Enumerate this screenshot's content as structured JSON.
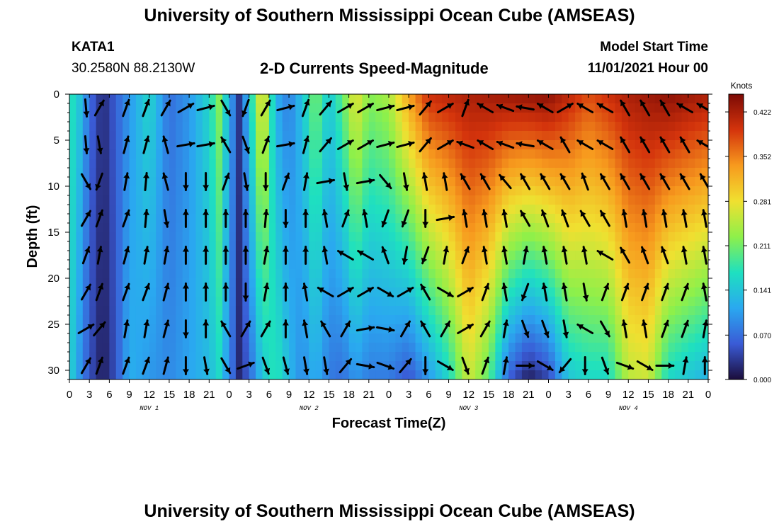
{
  "header": {
    "title": "University of Southern Mississippi Ocean Cube (AMSEAS)",
    "station": "KATA1",
    "coords": "30.2580N  88.2130W",
    "subtitle": "2-D Currents Speed-Magnitude",
    "model_start_label": "Model Start Time",
    "model_start_value": "11/01/2021 Hour 00"
  },
  "footer": {
    "title": "University of Southern Mississippi Ocean Cube (AMSEAS)"
  },
  "chart_data": {
    "type": "heatmap",
    "title": "2-D Currents Speed-Magnitude",
    "xlabel": "Forecast Time(Z)",
    "ylabel": "Depth (ft)",
    "x_hours": [
      0,
      96
    ],
    "ylim": [
      0,
      31
    ],
    "x_tick_labels": [
      "0",
      "3",
      "6",
      "9",
      "12",
      "15",
      "18",
      "21",
      "0",
      "3",
      "6",
      "9",
      "12",
      "15",
      "18",
      "21",
      "0",
      "3",
      "6",
      "9",
      "12",
      "15",
      "18",
      "21",
      "0",
      "3",
      "6",
      "9",
      "12",
      "15",
      "18",
      "21",
      "0"
    ],
    "day_labels": [
      {
        "label": "NOV 1",
        "hour": 12
      },
      {
        "label": "NOV 2",
        "hour": 36
      },
      {
        "label": "NOV 3",
        "hour": 60
      },
      {
        "label": "NOV 4",
        "hour": 84
      }
    ],
    "y_ticks": [
      0,
      5,
      10,
      15,
      20,
      25,
      30
    ],
    "colorbar": {
      "unit": "Knots",
      "min": 0.0,
      "max": 0.45,
      "ticks": [
        "0.000",
        "0.070",
        "0.141",
        "0.211",
        "0.281",
        "0.352",
        "0.422"
      ],
      "tick_values": [
        0.0,
        0.07,
        0.141,
        0.211,
        0.281,
        0.352,
        0.422
      ],
      "colors": [
        "#1b0d3b",
        "#3a5bd6",
        "#2aa8f0",
        "#1ee0c0",
        "#8ef04a",
        "#f0e030",
        "#f79a1e",
        "#d4340c",
        "#7c0a05"
      ]
    },
    "speed_profile_surface": [
      {
        "hour": 0,
        "speed": 0.18
      },
      {
        "hour": 1.5,
        "speed": 0.14
      },
      {
        "hour": 3,
        "speed": 0.07
      },
      {
        "hour": 5,
        "speed": 0.02
      },
      {
        "hour": 7,
        "speed": 0.06
      },
      {
        "hour": 9,
        "speed": 0.1
      },
      {
        "hour": 12,
        "speed": 0.16
      },
      {
        "hour": 15,
        "speed": 0.07
      },
      {
        "hour": 18,
        "speed": 0.1
      },
      {
        "hour": 21,
        "speed": 0.16
      },
      {
        "hour": 22.5,
        "speed": 0.22
      },
      {
        "hour": 24,
        "speed": 0.12
      },
      {
        "hour": 25.5,
        "speed": 0.03
      },
      {
        "hour": 27,
        "speed": 0.14
      },
      {
        "hour": 29,
        "speed": 0.3
      },
      {
        "hour": 31,
        "speed": 0.12
      },
      {
        "hour": 33,
        "speed": 0.08
      },
      {
        "hour": 35,
        "speed": 0.14
      },
      {
        "hour": 37,
        "speed": 0.22
      },
      {
        "hour": 39,
        "speed": 0.14
      },
      {
        "hour": 41,
        "speed": 0.2
      },
      {
        "hour": 43,
        "speed": 0.28
      },
      {
        "hour": 45,
        "speed": 0.22
      },
      {
        "hour": 48,
        "speed": 0.24
      },
      {
        "hour": 51,
        "speed": 0.33
      },
      {
        "hour": 54,
        "speed": 0.4
      },
      {
        "hour": 60,
        "speed": 0.42
      },
      {
        "hour": 66,
        "speed": 0.43
      },
      {
        "hour": 72,
        "speed": 0.44
      },
      {
        "hour": 78,
        "speed": 0.38
      },
      {
        "hour": 84,
        "speed": 0.42
      },
      {
        "hour": 90,
        "speed": 0.44
      },
      {
        "hour": 96,
        "speed": 0.42
      }
    ],
    "speed_profile_bottom": [
      {
        "hour": 0,
        "speed": 0.16
      },
      {
        "hour": 1.5,
        "speed": 0.1
      },
      {
        "hour": 3,
        "speed": 0.05
      },
      {
        "hour": 5,
        "speed": 0.01
      },
      {
        "hour": 7,
        "speed": 0.05
      },
      {
        "hour": 9,
        "speed": 0.12
      },
      {
        "hour": 12,
        "speed": 0.1
      },
      {
        "hour": 15,
        "speed": 0.09
      },
      {
        "hour": 18,
        "speed": 0.11
      },
      {
        "hour": 21,
        "speed": 0.13
      },
      {
        "hour": 22.5,
        "speed": 0.16
      },
      {
        "hour": 24,
        "speed": 0.09
      },
      {
        "hour": 25.5,
        "speed": 0.02
      },
      {
        "hour": 27,
        "speed": 0.06
      },
      {
        "hour": 29,
        "speed": 0.14
      },
      {
        "hour": 31,
        "speed": 0.18
      },
      {
        "hour": 33,
        "speed": 0.13
      },
      {
        "hour": 35,
        "speed": 0.09
      },
      {
        "hour": 37,
        "speed": 0.12
      },
      {
        "hour": 39,
        "speed": 0.08
      },
      {
        "hour": 41,
        "speed": 0.07
      },
      {
        "hour": 43,
        "speed": 0.1
      },
      {
        "hour": 45,
        "speed": 0.08
      },
      {
        "hour": 48,
        "speed": 0.08
      },
      {
        "hour": 51,
        "speed": 0.05
      },
      {
        "hour": 54,
        "speed": 0.1
      },
      {
        "hour": 57,
        "speed": 0.16
      },
      {
        "hour": 60,
        "speed": 0.26
      },
      {
        "hour": 63,
        "speed": 0.2
      },
      {
        "hour": 66,
        "speed": 0.06
      },
      {
        "hour": 69,
        "speed": 0.01
      },
      {
        "hour": 72,
        "speed": 0.04
      },
      {
        "hour": 75,
        "speed": 0.14
      },
      {
        "hour": 78,
        "speed": 0.16
      },
      {
        "hour": 81,
        "speed": 0.16
      },
      {
        "hour": 84,
        "speed": 0.25
      },
      {
        "hour": 87,
        "speed": 0.26
      },
      {
        "hour": 90,
        "speed": 0.16
      },
      {
        "hour": 93,
        "speed": 0.14
      },
      {
        "hour": 96,
        "speed": 0.12
      }
    ],
    "arrow_depths_ft": [
      1.5,
      5.5,
      9.5,
      13.5,
      17.5,
      21.5,
      25.5,
      29.5
    ],
    "arrow_hours": [
      2.5,
      4.5,
      8.5,
      11.5,
      14.5,
      17.5,
      20.5,
      23.5,
      26.5,
      29.5,
      32.5,
      35.5,
      38.5,
      41.5,
      44.5,
      47.5,
      50.5,
      53.5,
      56.5,
      59.5,
      62.5,
      65.5,
      68.5,
      71.5,
      74.5,
      77.5,
      80.5,
      83.5,
      86.5,
      89.5,
      92.5,
      95.5
    ],
    "arrow_directions_deg": [
      [
        175,
        30,
        20,
        20,
        30,
        60,
        75,
        150,
        200,
        30,
        75,
        20,
        40,
        60,
        60,
        75,
        75,
        40,
        60,
        20,
        300,
        290,
        280,
        300,
        60,
        300,
        300,
        330,
        330,
        330,
        300,
        300
      ],
      [
        175,
        170,
        15,
        15,
        345,
        80,
        80,
        330,
        160,
        20,
        80,
        15,
        40,
        60,
        60,
        75,
        75,
        40,
        60,
        290,
        300,
        290,
        280,
        300,
        330,
        300,
        300,
        330,
        330,
        330,
        330,
        300
      ],
      [
        150,
        200,
        10,
        5,
        345,
        180,
        180,
        20,
        170,
        180,
        20,
        10,
        80,
        170,
        80,
        140,
        170,
        350,
        350,
        330,
        330,
        320,
        330,
        330,
        330,
        340,
        330,
        330,
        330,
        330,
        330,
        330
      ],
      [
        30,
        20,
        20,
        5,
        170,
        0,
        0,
        0,
        0,
        5,
        180,
        0,
        350,
        20,
        350,
        200,
        200,
        180,
        80,
        350,
        350,
        350,
        330,
        340,
        340,
        330,
        330,
        350,
        350,
        350,
        350,
        350
      ],
      [
        20,
        10,
        15,
        10,
        10,
        0,
        0,
        0,
        0,
        10,
        0,
        0,
        350,
        300,
        300,
        340,
        190,
        200,
        10,
        20,
        350,
        350,
        10,
        350,
        350,
        350,
        300,
        330,
        340,
        340,
        350,
        350
      ],
      [
        30,
        20,
        20,
        20,
        15,
        0,
        0,
        0,
        180,
        10,
        0,
        350,
        300,
        60,
        60,
        120,
        60,
        330,
        120,
        60,
        20,
        350,
        200,
        350,
        350,
        170,
        20,
        20,
        20,
        20,
        20,
        350
      ],
      [
        60,
        40,
        10,
        10,
        15,
        180,
        0,
        330,
        30,
        30,
        0,
        350,
        330,
        30,
        80,
        100,
        30,
        330,
        30,
        60,
        30,
        10,
        160,
        160,
        170,
        300,
        150,
        350,
        350,
        20,
        20,
        10
      ],
      [
        30,
        20,
        20,
        20,
        15,
        180,
        170,
        150,
        70,
        160,
        165,
        170,
        170,
        40,
        100,
        110,
        40,
        180,
        120,
        160,
        20,
        10,
        90,
        120,
        220,
        180,
        160,
        110,
        120,
        90,
        10,
        0
      ]
    ]
  }
}
